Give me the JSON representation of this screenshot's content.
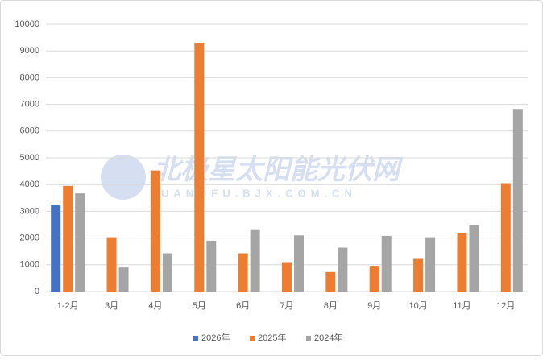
{
  "chart_data": {
    "type": "bar",
    "watermark": [
      "北极星太阳能光伏网",
      "UANGFU.BJX.COM.CN"
    ],
    "categories": [
      "1-2月",
      "3月",
      "4月",
      "5月",
      "6月",
      "7月",
      "8月",
      "9月",
      "10月",
      "11月",
      "12月"
    ],
    "series": [
      {
        "name": "2026年",
        "color": "#4472c4",
        "values": [
          3250,
          null,
          null,
          null,
          null,
          null,
          null,
          null,
          null,
          null,
          null
        ]
      },
      {
        "name": "2025年",
        "color": "#ed7d31",
        "values": [
          3950,
          2030,
          4530,
          9300,
          1430,
          1100,
          730,
          960,
          1250,
          2200,
          4050
        ]
      },
      {
        "name": "2024年",
        "color": "#a5a5a5",
        "values": [
          3670,
          900,
          1430,
          1900,
          2330,
          2100,
          1640,
          2080,
          2030,
          2500,
          6830
        ]
      }
    ],
    "ylim": [
      0,
      10000
    ],
    "yticks": [
      0,
      1000,
      2000,
      3000,
      4000,
      5000,
      6000,
      7000,
      8000,
      9000,
      10000
    ],
    "grid": true,
    "legend": "bottom"
  }
}
